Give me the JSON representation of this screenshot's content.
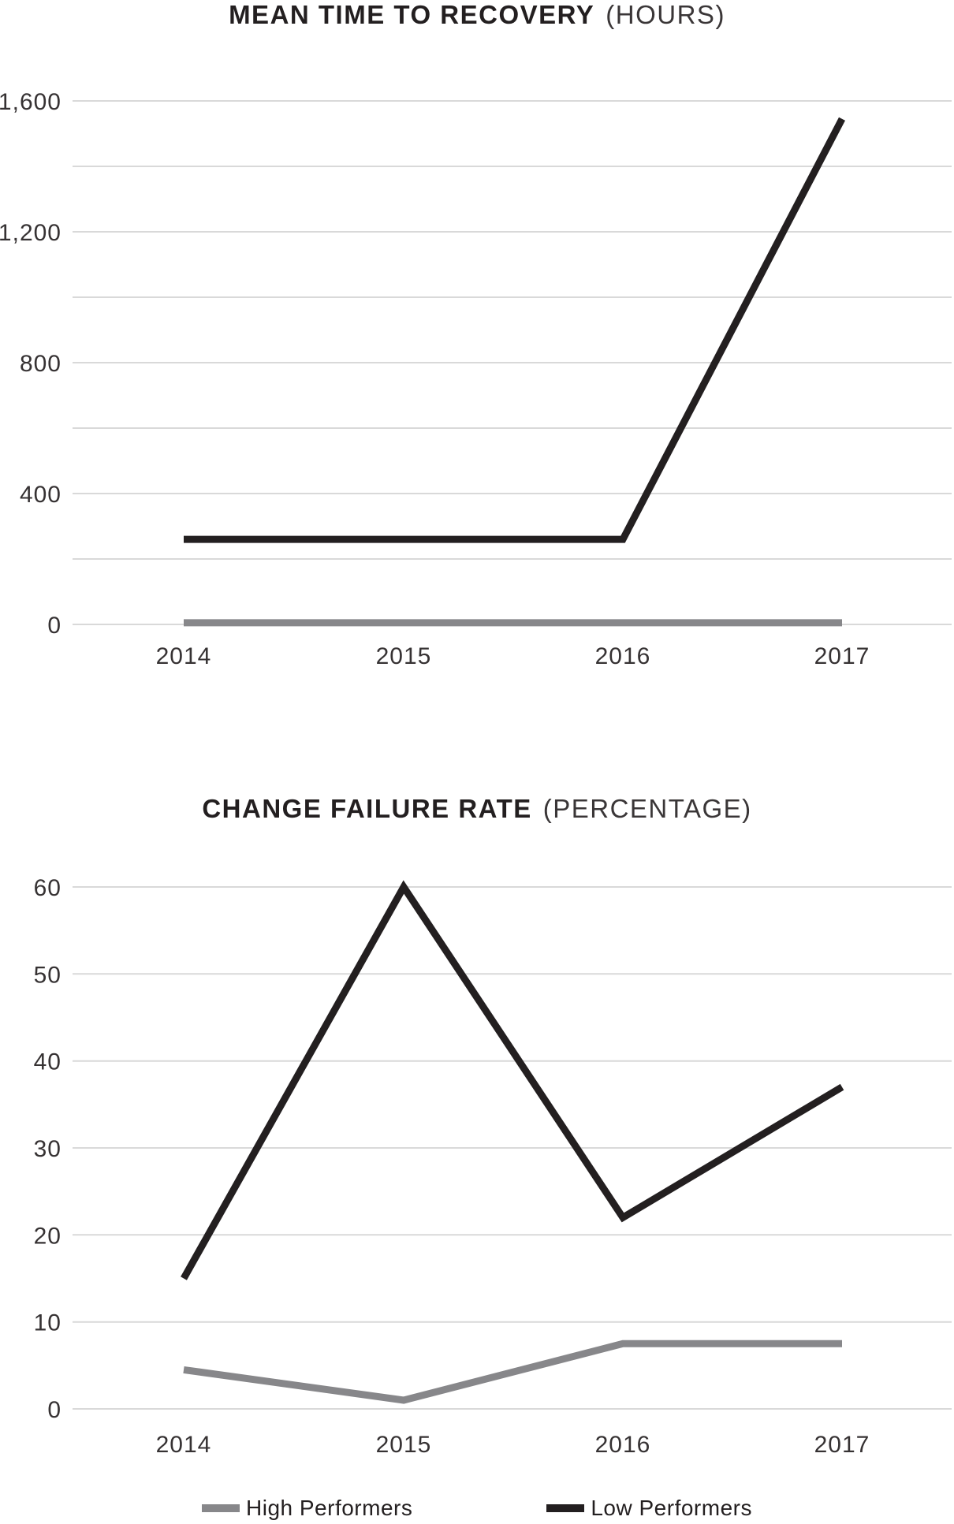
{
  "page": {
    "background": "#ffffff"
  },
  "colors": {
    "series_gray": "#87878a",
    "series_black": "#231f20",
    "gridline": "#d9d9d9",
    "tick_label": "#363233",
    "title": "#231f20"
  },
  "legend": {
    "items": [
      {
        "label": "High Performers",
        "color": "#87878a"
      },
      {
        "label": "Low Performers",
        "color": "#231f20"
      }
    ],
    "position": "bottom-center"
  },
  "chart_data": [
    {
      "type": "line",
      "title": "MEAN TIME TO RECOVERY",
      "title_suffix": "(HOURS)",
      "xlabel": "",
      "ylabel": "",
      "x": [
        "2014",
        "2015",
        "2016",
        "2017"
      ],
      "series": [
        {
          "name": "High Performers",
          "color": "#87878a",
          "values": [
            5,
            5,
            5,
            5
          ]
        },
        {
          "name": "Low Performers",
          "color": "#231f20",
          "values": [
            260,
            260,
            260,
            1545
          ]
        }
      ],
      "ylim": [
        0,
        1600
      ],
      "ygrid_step": 200,
      "ylabel_step": 400,
      "ytick_labels": [
        "0",
        "400",
        "800",
        "1,200",
        "1,600"
      ],
      "grid": true,
      "legend_position": "shared-bottom"
    },
    {
      "type": "line",
      "title": "CHANGE FAILURE RATE",
      "title_suffix": "(PERCENTAGE)",
      "xlabel": "",
      "ylabel": "",
      "x": [
        "2014",
        "2015",
        "2016",
        "2017"
      ],
      "series": [
        {
          "name": "High Performers",
          "color": "#87878a",
          "values": [
            4.5,
            1,
            7.5,
            7.5
          ]
        },
        {
          "name": "Low Performers",
          "color": "#231f20",
          "values": [
            15,
            60,
            22,
            37
          ]
        }
      ],
      "ylim": [
        0,
        60
      ],
      "ygrid_step": 10,
      "ylabel_step": 10,
      "ytick_labels": [
        "0",
        "10",
        "20",
        "30",
        "40",
        "50",
        "60"
      ],
      "grid": true,
      "legend_position": "shared-bottom"
    }
  ]
}
